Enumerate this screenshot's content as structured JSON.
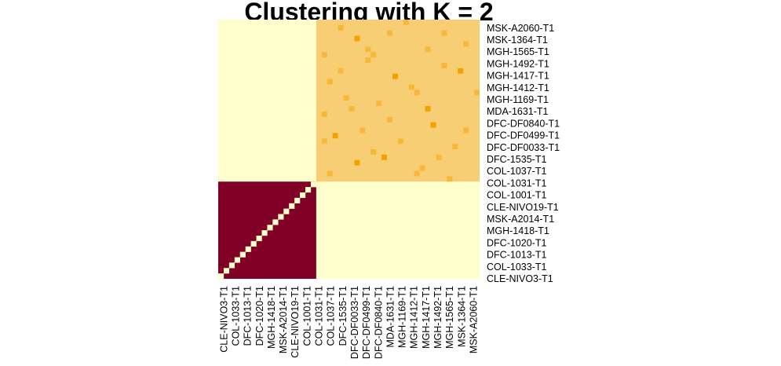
{
  "title": "Clustering with K = 2",
  "chart_data": {
    "type": "heatmap",
    "title": "Clustering with K = 2",
    "k": 2,
    "colors": {
      "background": "#ffffcc",
      "cluster_1": "#800026",
      "cluster_2": "#f7ce73",
      "cluster_2_strong": "#f9b73a",
      "cluster_2_strongest": "#f5a000",
      "diagonal_1": "#ffffcc"
    },
    "samples": [
      "CLE-NIVO3-T1",
      "COL-1033-T1",
      "DFC-1013-T1",
      "DFC-1020-T1",
      "MGH-1418-T1",
      "MSK-A2014-T1",
      "CLE-NIVO19-T1",
      "COL-1001-T1",
      "COL-1031-T1",
      "COL-1037-T1",
      "DFC-1535-T1",
      "DFC-DF0033-T1",
      "DFC-DF0499-T1",
      "DFC-DF0840-T1",
      "MDA-1631-T1",
      "MGH-1169-T1",
      "MGH-1412-T1",
      "MGH-1417-T1",
      "MGH-1492-T1",
      "MGH-1565-T1",
      "MSK-1364-T1",
      "MSK-A2060-T1"
    ],
    "clusters": [
      {
        "id": 1,
        "count": 18,
        "block_value": 1.0,
        "diagonal_value": 0.0
      },
      {
        "id": 2,
        "count": 30,
        "block_value": 0.5
      }
    ],
    "off_block_value": 0.0,
    "cluster_2_hot_cells": [
      [
        1,
        4,
        0.8
      ],
      [
        2,
        13,
        0.7
      ],
      [
        3,
        7,
        1.0
      ],
      [
        5,
        20,
        0.7
      ],
      [
        6,
        1,
        0.7
      ],
      [
        7,
        9,
        0.7
      ],
      [
        8,
        23,
        0.7
      ],
      [
        9,
        26,
        1.0
      ],
      [
        11,
        2,
        0.8
      ],
      [
        12,
        17,
        0.7
      ],
      [
        13,
        29,
        0.7
      ],
      [
        14,
        5,
        0.7
      ],
      [
        15,
        11,
        0.7
      ],
      [
        16,
        20,
        1.0
      ],
      [
        17,
        1,
        0.7
      ],
      [
        18,
        13,
        0.7
      ],
      [
        19,
        21,
        1.0
      ],
      [
        20,
        8,
        0.7
      ],
      [
        21,
        3,
        1.0
      ],
      [
        22,
        15,
        0.7
      ],
      [
        23,
        25,
        0.7
      ],
      [
        24,
        10,
        0.7
      ],
      [
        25,
        22,
        0.7
      ],
      [
        26,
        7,
        1.0
      ],
      [
        27,
        19,
        0.7
      ],
      [
        28,
        2,
        0.7
      ],
      [
        4,
        27,
        0.7
      ],
      [
        10,
        14,
        1.0
      ],
      [
        0,
        16,
        0.7
      ],
      [
        29,
        24,
        0.7
      ],
      [
        2,
        23,
        0.7
      ],
      [
        6,
        10,
        0.7
      ],
      [
        9,
        4,
        0.7
      ],
      [
        13,
        18,
        0.8
      ],
      [
        16,
        6,
        0.7
      ],
      [
        20,
        27,
        0.7
      ],
      [
        22,
        1,
        0.7
      ],
      [
        25,
        12,
        1.0
      ],
      [
        28,
        18,
        0.7
      ],
      [
        5,
        9,
        0.7
      ]
    ]
  }
}
